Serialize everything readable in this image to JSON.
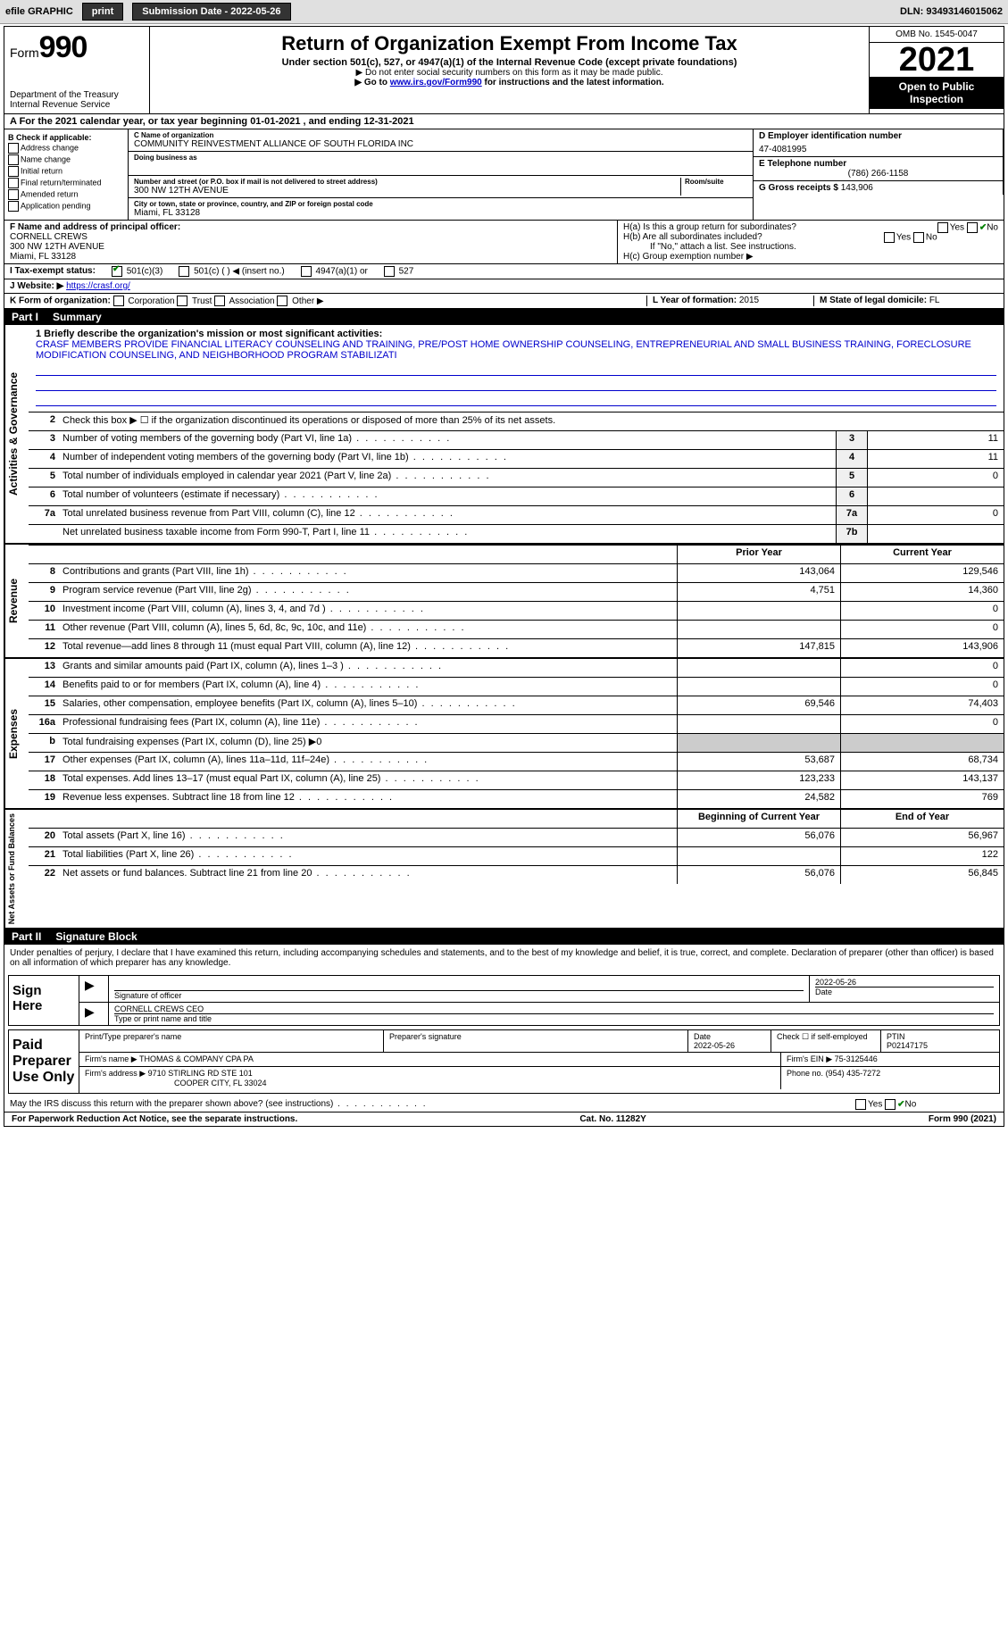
{
  "topbar": {
    "efile": "efile GRAPHIC",
    "print": "print",
    "subdate_label": "Submission Date - 2022-05-26",
    "dln": "DLN: 93493146015062"
  },
  "header": {
    "form_word": "Form",
    "form_num": "990",
    "dept": "Department of the Treasury",
    "irs": "Internal Revenue Service",
    "title": "Return of Organization Exempt From Income Tax",
    "subtitle": "Under section 501(c), 527, or 4947(a)(1) of the Internal Revenue Code (except private foundations)",
    "note1": "▶ Do not enter social security numbers on this form as it may be made public.",
    "note2_pre": "▶ Go to ",
    "note2_link": "www.irs.gov/Form990",
    "note2_post": " for instructions and the latest information.",
    "omb": "OMB No. 1545-0047",
    "year": "2021",
    "open": "Open to Public Inspection"
  },
  "row_a": "A For the 2021 calendar year, or tax year beginning 01-01-2021    , and ending 12-31-2021",
  "b": {
    "label": "B Check if applicable:",
    "items": [
      "Address change",
      "Name change",
      "Initial return",
      "Final return/terminated",
      "Amended return",
      "Application pending"
    ]
  },
  "c": {
    "name_label": "C Name of organization",
    "name": "COMMUNITY REINVESTMENT ALLIANCE OF SOUTH FLORIDA INC",
    "dba_label": "Doing business as",
    "dba": "",
    "street_label": "Number and street (or P.O. box if mail is not delivered to street address)",
    "room_label": "Room/suite",
    "street": "300 NW 12TH AVENUE",
    "city_label": "City or town, state or province, country, and ZIP or foreign postal code",
    "city": "Miami, FL  33128"
  },
  "d": {
    "label": "D Employer identification number",
    "val": "47-4081995"
  },
  "e": {
    "label": "E Telephone number",
    "val": "(786) 266-1158"
  },
  "g": {
    "label": "G Gross receipts $",
    "val": "143,906"
  },
  "f": {
    "label": "F  Name and address of principal officer:",
    "name": "CORNELL CREWS",
    "street": "300 NW 12TH AVENUE",
    "city": "Miami, FL  33128"
  },
  "h": {
    "a": "H(a)  Is this a group return for subordinates?",
    "a_ans": "No",
    "b": "H(b)  Are all subordinates included?",
    "b_note": "If \"No,\" attach a list. See instructions.",
    "c": "H(c)  Group exemption number ▶"
  },
  "i": {
    "label": "I   Tax-exempt status:",
    "opt1": "501(c)(3)",
    "opt2": "501(c) (  ) ◀ (insert no.)",
    "opt3": "4947(a)(1) or",
    "opt4": "527"
  },
  "j": {
    "label": "J   Website: ▶",
    "val": " https://crasf.org/"
  },
  "k": {
    "label": "K Form of organization:",
    "opts": [
      "Corporation",
      "Trust",
      "Association",
      "Other ▶"
    ]
  },
  "l": {
    "label": "L Year of formation:",
    "val": "2015"
  },
  "m": {
    "label": "M State of legal domicile:",
    "val": "FL"
  },
  "part1": {
    "label": "Part I",
    "title": "Summary"
  },
  "summary": {
    "mission_label": "1 Briefly describe the organization's mission or most significant activities:",
    "mission": "CRASF MEMBERS PROVIDE FINANCIAL LITERACY COUNSELING AND TRAINING, PRE/POST HOME OWNERSHIP COUNSELING, ENTREPRENEURIAL AND SMALL BUSINESS TRAINING, FORECLOSURE MODIFICATION COUNSELING, AND NEIGHBORHOOD PROGRAM STABILIZATI",
    "line2": "Check this box ▶ ☐  if the organization discontinued its operations or disposed of more than 25% of its net assets.",
    "rows_ag": [
      {
        "n": "3",
        "t": "Number of voting members of the governing body (Part VI, line 1a)",
        "box": "3",
        "v": "11"
      },
      {
        "n": "4",
        "t": "Number of independent voting members of the governing body (Part VI, line 1b)",
        "box": "4",
        "v": "11"
      },
      {
        "n": "5",
        "t": "Total number of individuals employed in calendar year 2021 (Part V, line 2a)",
        "box": "5",
        "v": "0"
      },
      {
        "n": "6",
        "t": "Total number of volunteers (estimate if necessary)",
        "box": "6",
        "v": ""
      },
      {
        "n": "7a",
        "t": "Total unrelated business revenue from Part VIII, column (C), line 12",
        "box": "7a",
        "v": "0"
      },
      {
        "n": "",
        "t": "Net unrelated business taxable income from Form 990-T, Part I, line 11",
        "box": "7b",
        "v": ""
      }
    ],
    "col_prior": "Prior Year",
    "col_current": "Current Year",
    "rev": [
      {
        "n": "8",
        "t": "Contributions and grants (Part VIII, line 1h)",
        "p": "143,064",
        "c": "129,546"
      },
      {
        "n": "9",
        "t": "Program service revenue (Part VIII, line 2g)",
        "p": "4,751",
        "c": "14,360"
      },
      {
        "n": "10",
        "t": "Investment income (Part VIII, column (A), lines 3, 4, and 7d )",
        "p": "",
        "c": "0"
      },
      {
        "n": "11",
        "t": "Other revenue (Part VIII, column (A), lines 5, 6d, 8c, 9c, 10c, and 11e)",
        "p": "",
        "c": "0"
      },
      {
        "n": "12",
        "t": "Total revenue—add lines 8 through 11 (must equal Part VIII, column (A), line 12)",
        "p": "147,815",
        "c": "143,906"
      }
    ],
    "exp": [
      {
        "n": "13",
        "t": "Grants and similar amounts paid (Part IX, column (A), lines 1–3 )",
        "p": "",
        "c": "0"
      },
      {
        "n": "14",
        "t": "Benefits paid to or for members (Part IX, column (A), line 4)",
        "p": "",
        "c": "0"
      },
      {
        "n": "15",
        "t": "Salaries, other compensation, employee benefits (Part IX, column (A), lines 5–10)",
        "p": "69,546",
        "c": "74,403"
      },
      {
        "n": "16a",
        "t": "Professional fundraising fees (Part IX, column (A), line 11e)",
        "p": "",
        "c": "0"
      },
      {
        "n": "b",
        "t": "Total fundraising expenses (Part IX, column (D), line 25) ▶0",
        "p": "SHADE",
        "c": "SHADE"
      },
      {
        "n": "17",
        "t": "Other expenses (Part IX, column (A), lines 11a–11d, 11f–24e)",
        "p": "53,687",
        "c": "68,734"
      },
      {
        "n": "18",
        "t": "Total expenses. Add lines 13–17 (must equal Part IX, column (A), line 25)",
        "p": "123,233",
        "c": "143,137"
      },
      {
        "n": "19",
        "t": "Revenue less expenses. Subtract line 18 from line 12",
        "p": "24,582",
        "c": "769"
      }
    ],
    "col_begin": "Beginning of Current Year",
    "col_end": "End of Year",
    "net": [
      {
        "n": "20",
        "t": "Total assets (Part X, line 16)",
        "p": "56,076",
        "c": "56,967"
      },
      {
        "n": "21",
        "t": "Total liabilities (Part X, line 26)",
        "p": "",
        "c": "122"
      },
      {
        "n": "22",
        "t": "Net assets or fund balances. Subtract line 21 from line 20",
        "p": "56,076",
        "c": "56,845"
      }
    ],
    "vert_ag": "Activities & Governance",
    "vert_rev": "Revenue",
    "vert_exp": "Expenses",
    "vert_net": "Net Assets or Fund Balances"
  },
  "part2": {
    "label": "Part II",
    "title": "Signature Block"
  },
  "sig": {
    "penalty": "Under penalties of perjury, I declare that I have examined this return, including accompanying schedules and statements, and to the best of my knowledge and belief, it is true, correct, and complete. Declaration of preparer (other than officer) is based on all information of which preparer has any knowledge.",
    "sign_here": "Sign Here",
    "sig_officer": "Signature of officer",
    "sig_date": "2022-05-26",
    "date_label": "Date",
    "officer_name": "CORNELL CREWS  CEO",
    "type_name": "Type or print name and title",
    "paid": "Paid Preparer Use Only",
    "prep_name_label": "Print/Type preparer's name",
    "prep_sig_label": "Preparer's signature",
    "prep_date_label": "Date",
    "prep_date": "2022-05-26",
    "check_if": "Check ☐ if self-employed",
    "ptin_label": "PTIN",
    "ptin": "P02147175",
    "firm_name_label": "Firm's name    ▶",
    "firm_name": "THOMAS & COMPANY CPA PA",
    "firm_ein_label": "Firm's EIN ▶",
    "firm_ein": "75-3125446",
    "firm_addr_label": "Firm's address ▶",
    "firm_addr1": "9710 STIRLING RD STE 101",
    "firm_addr2": "COOPER CITY, FL  33024",
    "phone_label": "Phone no.",
    "phone": "(954) 435-7272",
    "discuss": "May the IRS discuss this return with the preparer shown above? (see instructions)",
    "discuss_ans": "No"
  },
  "footer": {
    "left": "For Paperwork Reduction Act Notice, see the separate instructions.",
    "mid": "Cat. No. 11282Y",
    "right": "Form 990 (2021)"
  },
  "colors": {
    "link": "#0000cc",
    "check": "#008000"
  }
}
